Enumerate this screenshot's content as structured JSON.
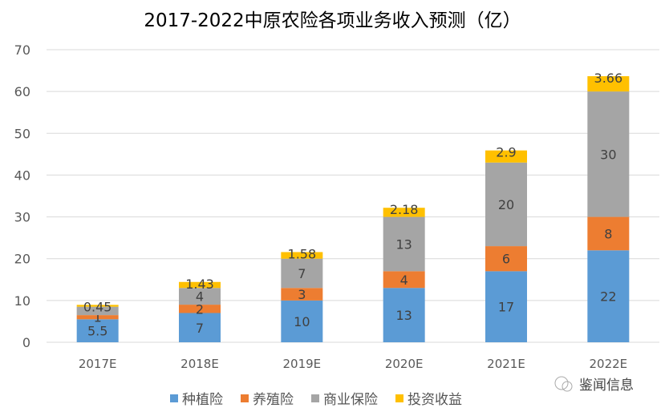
{
  "chart_data": {
    "type": "bar",
    "stacked": true,
    "title": "2017-2022中原农险各项业务收入预测（亿）",
    "categories": [
      "2017E",
      "2018E",
      "2019E",
      "2020E",
      "2021E",
      "2022E"
    ],
    "series": [
      {
        "name": "种植险",
        "color": "#5B9BD5",
        "values": [
          5.5,
          7,
          10,
          13,
          17,
          22
        ]
      },
      {
        "name": "养殖险",
        "color": "#ED7D31",
        "values": [
          1,
          2,
          3,
          4,
          6,
          8
        ]
      },
      {
        "name": "商业保险",
        "color": "#A5A5A5",
        "values": [
          2,
          4,
          7,
          13,
          20,
          30
        ]
      },
      {
        "name": "投资收益",
        "color": "#FFC000",
        "values": [
          0.45,
          1.43,
          1.58,
          2.18,
          2.9,
          3.66
        ]
      }
    ],
    "ylim": [
      0,
      70
    ],
    "yticks": [
      0,
      10,
      20,
      30,
      40,
      50,
      60,
      70
    ],
    "grid": true,
    "legend": "bottom"
  },
  "watermark": "鉴闻信息"
}
